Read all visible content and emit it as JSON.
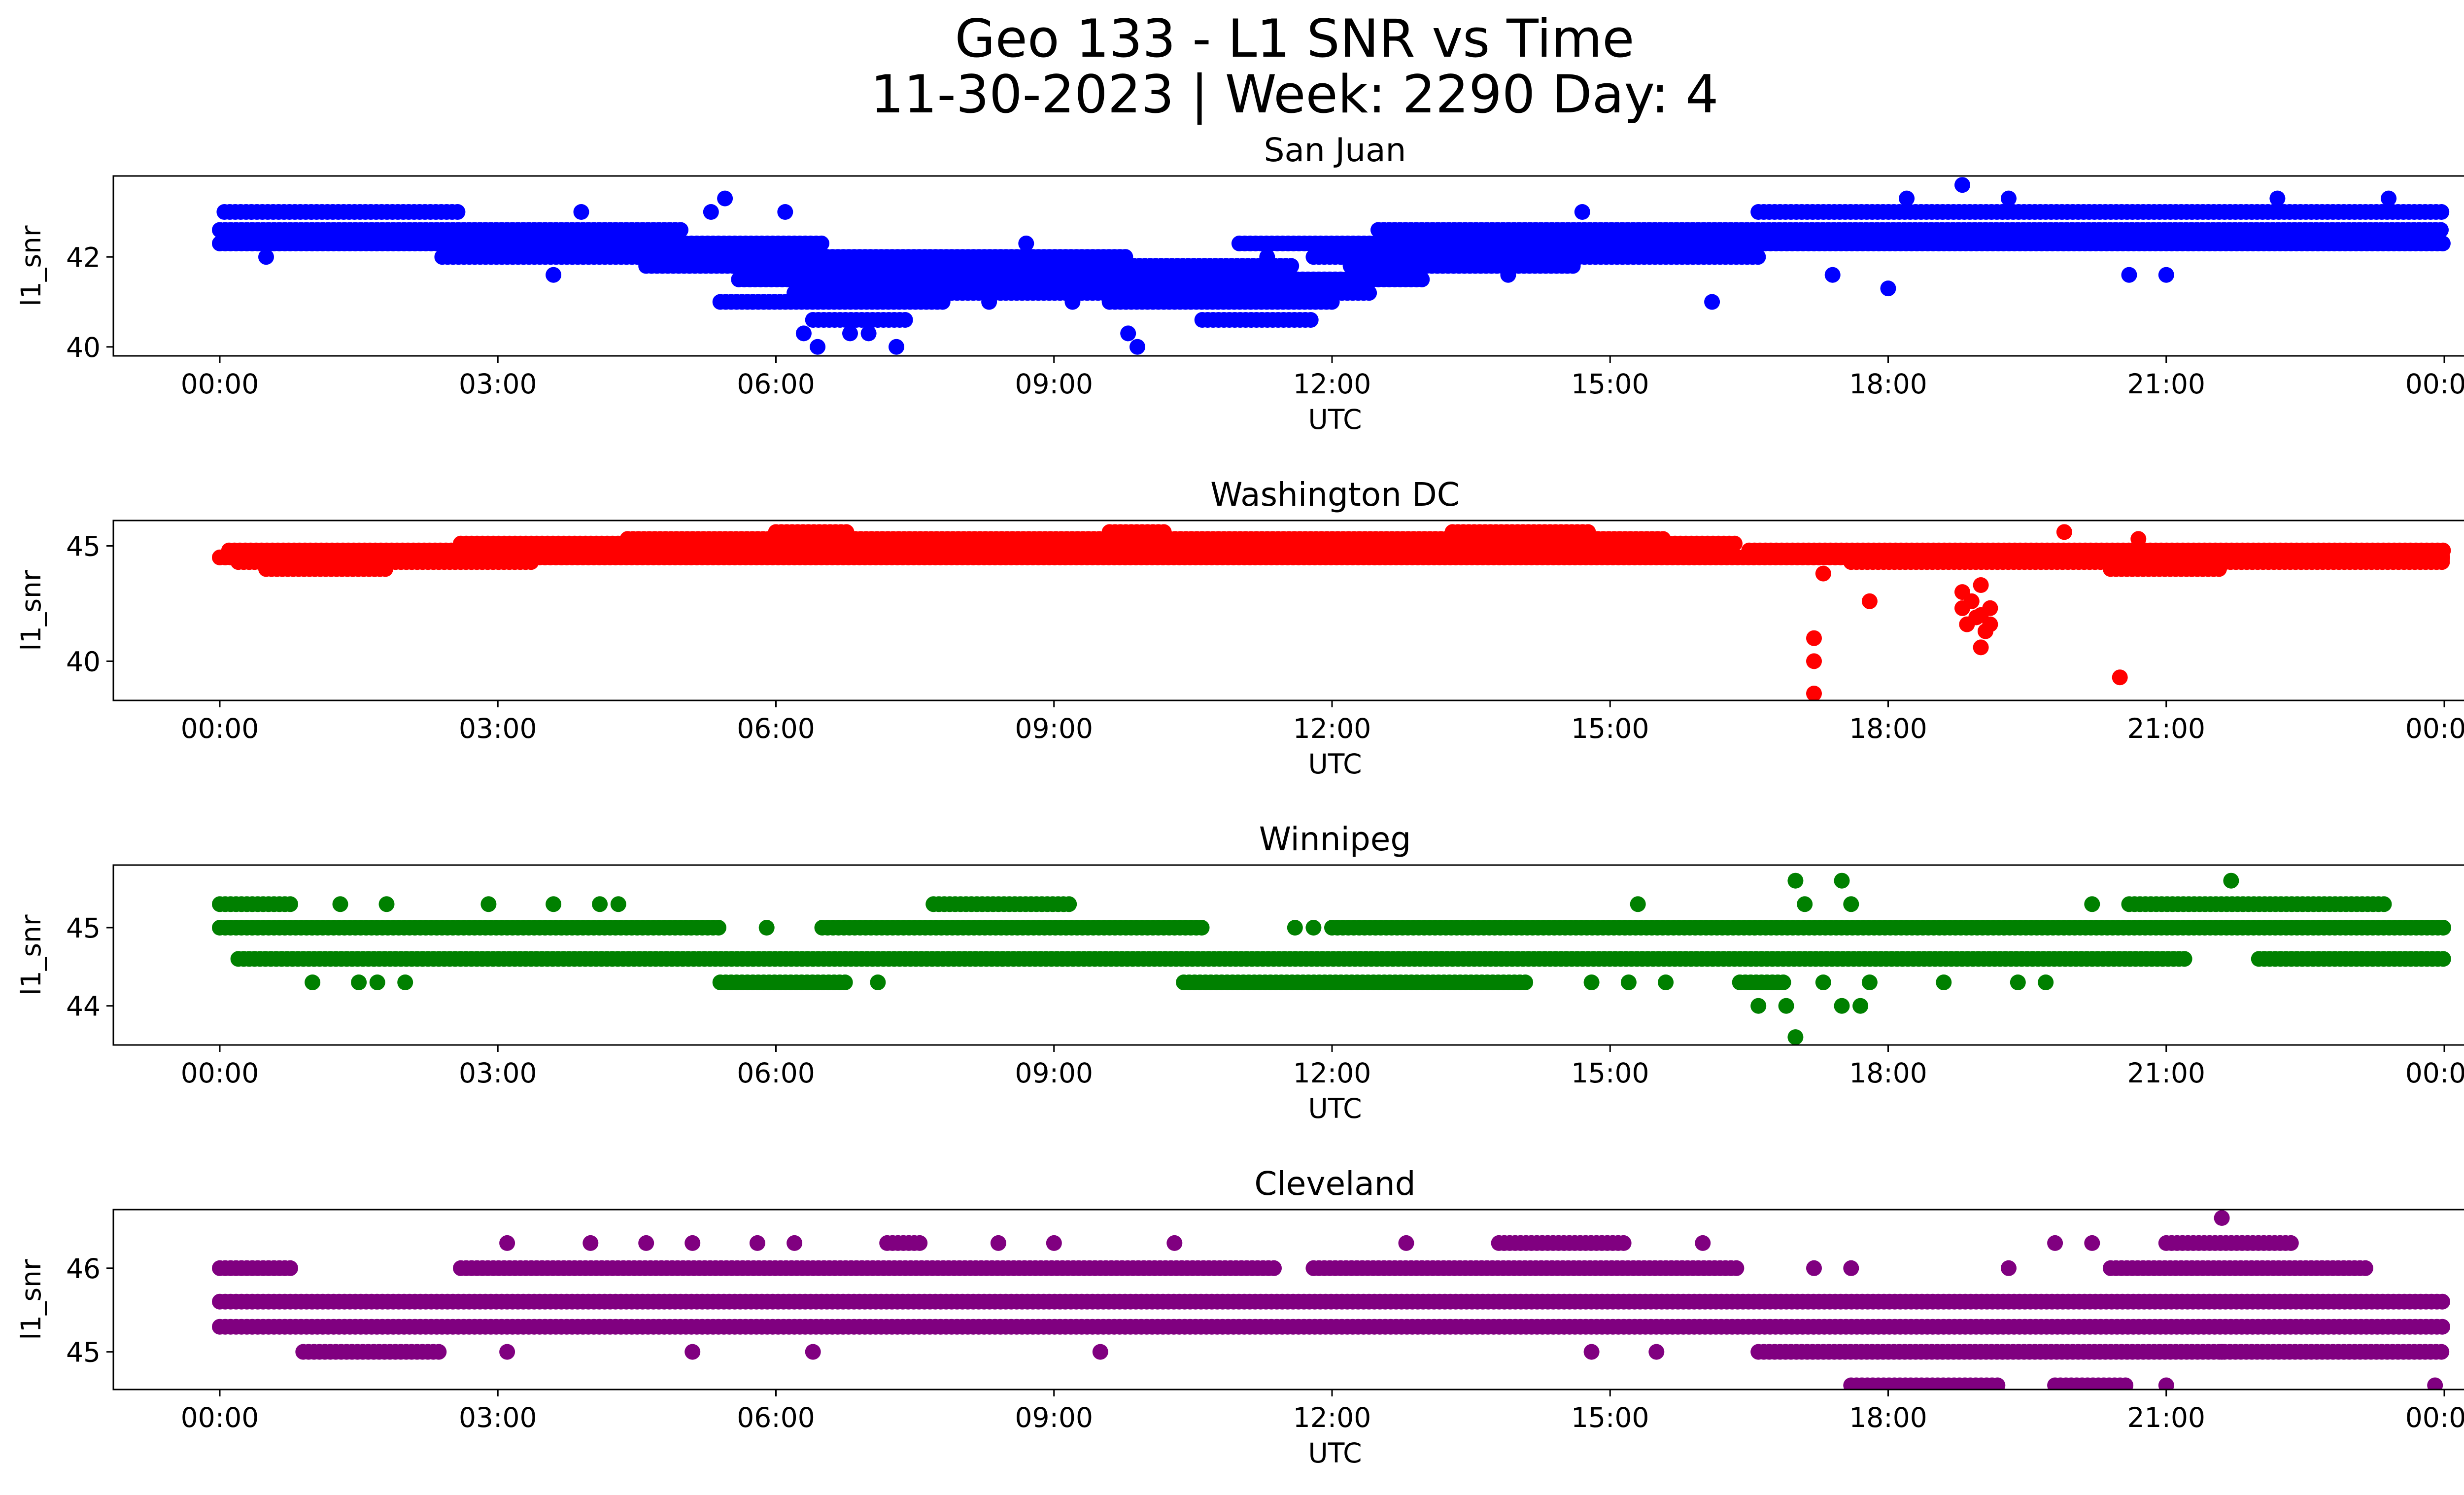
{
  "title_line1": "Geo 133 - L1 SNR vs Time",
  "title_line2": "11-30-2023 | Week: 2290 Day: 4",
  "chart_data": [
    {
      "type": "scatter",
      "title": "San Juan",
      "xlabel": "UTC",
      "ylabel": "l1_snr",
      "color": "#0000ff",
      "xlim": [
        "2023-11-30 00:00",
        "2023-12-01 00:00"
      ],
      "ylim": [
        39.8,
        43.8
      ],
      "yticks": [
        40,
        42
      ],
      "xticks": [
        "00:00",
        "03:00",
        "06:00",
        "09:00",
        "12:00",
        "15:00",
        "18:00",
        "21:00",
        "00:00"
      ],
      "bands": [
        {
          "y": 42.6,
          "x": [
            [
              0.0,
              5.0
            ],
            [
              12.5,
              24.0
            ]
          ]
        },
        {
          "y": 42.3,
          "x": [
            [
              0.0,
              6.5
            ],
            [
              11.0,
              24.0
            ]
          ]
        },
        {
          "y": 43.0,
          "x": [
            [
              0.05,
              2.6
            ],
            [
              16.6,
              24.0
            ]
          ]
        },
        {
          "y": 42.0,
          "x": [
            [
              2.4,
              9.8
            ],
            [
              11.8,
              16.6
            ]
          ]
        },
        {
          "y": 41.8,
          "x": [
            [
              4.6,
              11.6
            ],
            [
              12.2,
              14.6
            ]
          ]
        },
        {
          "y": 41.5,
          "x": [
            [
              5.6,
              13.0
            ]
          ]
        },
        {
          "y": 41.2,
          "x": [
            [
              6.2,
              12.4
            ]
          ]
        },
        {
          "y": 41.0,
          "x": [
            [
              5.4,
              7.8
            ],
            [
              9.6,
              12.0
            ]
          ]
        },
        {
          "y": 40.6,
          "x": [
            [
              6.4,
              7.4
            ],
            [
              10.6,
              11.8
            ]
          ]
        }
      ],
      "points": [
        {
          "x": 0.5,
          "y": 42.0
        },
        {
          "x": 3.6,
          "y": 41.6
        },
        {
          "x": 3.9,
          "y": 43.0
        },
        {
          "x": 5.3,
          "y": 43.0
        },
        {
          "x": 5.45,
          "y": 43.3
        },
        {
          "x": 6.1,
          "y": 43.0
        },
        {
          "x": 6.3,
          "y": 40.3
        },
        {
          "x": 6.45,
          "y": 40.0
        },
        {
          "x": 6.8,
          "y": 40.3
        },
        {
          "x": 7.0,
          "y": 40.3
        },
        {
          "x": 7.3,
          "y": 40.0
        },
        {
          "x": 8.3,
          "y": 41.0
        },
        {
          "x": 8.7,
          "y": 42.3
        },
        {
          "x": 9.2,
          "y": 41.0
        },
        {
          "x": 9.8,
          "y": 40.3
        },
        {
          "x": 9.9,
          "y": 40.0
        },
        {
          "x": 11.3,
          "y": 42.0
        },
        {
          "x": 12.1,
          "y": 42.0
        },
        {
          "x": 13.9,
          "y": 41.6
        },
        {
          "x": 14.7,
          "y": 43.0
        },
        {
          "x": 16.1,
          "y": 41.0
        },
        {
          "x": 17.4,
          "y": 41.6
        },
        {
          "x": 18.0,
          "y": 41.3
        },
        {
          "x": 18.2,
          "y": 43.3
        },
        {
          "x": 18.8,
          "y": 43.6
        },
        {
          "x": 19.3,
          "y": 43.3
        },
        {
          "x": 20.6,
          "y": 41.6
        },
        {
          "x": 21.0,
          "y": 41.6
        },
        {
          "x": 22.2,
          "y": 43.3
        },
        {
          "x": 23.4,
          "y": 43.3
        }
      ]
    },
    {
      "type": "scatter",
      "title": "Washington DC",
      "xlabel": "UTC",
      "ylabel": "l1_snr",
      "color": "#ff0000",
      "xlim": [
        "2023-11-30 00:00",
        "2023-12-01 00:00"
      ],
      "ylim": [
        38.3,
        46.1
      ],
      "yticks": [
        40,
        45
      ],
      "xticks": [
        "00:00",
        "03:00",
        "06:00",
        "09:00",
        "12:00",
        "15:00",
        "18:00",
        "21:00",
        "00:00"
      ],
      "bands": [
        {
          "y": 44.5,
          "x": [
            [
              0.0,
              24.0
            ]
          ]
        },
        {
          "y": 44.3,
          "x": [
            [
              0.2,
              3.4
            ],
            [
              17.6,
              24.0
            ]
          ]
        },
        {
          "y": 44.8,
          "x": [
            [
              0.1,
              5.2
            ],
            [
              16.5,
              24.0
            ]
          ]
        },
        {
          "y": 45.1,
          "x": [
            [
              2.6,
              16.4
            ]
          ]
        },
        {
          "y": 45.3,
          "x": [
            [
              4.4,
              15.6
            ]
          ]
        },
        {
          "y": 44.0,
          "x": [
            [
              0.5,
              1.8
            ],
            [
              20.4,
              21.6
            ]
          ]
        },
        {
          "y": 45.6,
          "x": [
            [
              6.0,
              6.8
            ],
            [
              9.6,
              10.2
            ],
            [
              13.3,
              14.8
            ]
          ]
        }
      ],
      "points": [
        {
          "x": 17.2,
          "y": 41.0
        },
        {
          "x": 17.2,
          "y": 40.0
        },
        {
          "x": 17.2,
          "y": 38.6
        },
        {
          "x": 17.3,
          "y": 43.8
        },
        {
          "x": 17.8,
          "y": 42.6
        },
        {
          "x": 18.8,
          "y": 43.0
        },
        {
          "x": 18.8,
          "y": 42.3
        },
        {
          "x": 18.85,
          "y": 41.6
        },
        {
          "x": 18.9,
          "y": 42.6
        },
        {
          "x": 18.95,
          "y": 41.9
        },
        {
          "x": 19.0,
          "y": 43.3
        },
        {
          "x": 19.0,
          "y": 42.0
        },
        {
          "x": 19.05,
          "y": 41.3
        },
        {
          "x": 19.0,
          "y": 40.6
        },
        {
          "x": 19.1,
          "y": 42.3
        },
        {
          "x": 19.1,
          "y": 41.6
        },
        {
          "x": 20.5,
          "y": 39.3
        },
        {
          "x": 19.9,
          "y": 45.6
        },
        {
          "x": 20.7,
          "y": 45.3
        }
      ]
    },
    {
      "type": "scatter",
      "title": "Winnipeg",
      "xlabel": "UTC",
      "ylabel": "l1_snr",
      "color": "#008000",
      "xlim": [
        "2023-11-30 00:00",
        "2023-12-01 00:00"
      ],
      "ylim": [
        43.5,
        45.8
      ],
      "yticks": [
        44,
        45
      ],
      "xticks": [
        "00:00",
        "03:00",
        "06:00",
        "09:00",
        "12:00",
        "15:00",
        "18:00",
        "21:00",
        "00:00"
      ],
      "bands": [
        {
          "y": 45.0,
          "x": [
            [
              0.0,
              5.4
            ],
            [
              6.5,
              10.6
            ],
            [
              12.0,
              24.0
            ]
          ]
        },
        {
          "y": 44.6,
          "x": [
            [
              0.2,
              21.2
            ],
            [
              22.0,
              24.0
            ]
          ]
        },
        {
          "y": 45.3,
          "x": [
            [
              0.0,
              0.8
            ],
            [
              7.7,
              9.2
            ],
            [
              20.6,
              23.4
            ]
          ]
        },
        {
          "y": 44.3,
          "x": [
            [
              5.4,
              6.8
            ],
            [
              10.4,
              14.1
            ],
            [
              16.4,
              16.9
            ]
          ]
        }
      ],
      "points": [
        {
          "x": 1.0,
          "y": 44.3
        },
        {
          "x": 1.5,
          "y": 44.3
        },
        {
          "x": 1.7,
          "y": 44.3
        },
        {
          "x": 2.0,
          "y": 44.3
        },
        {
          "x": 1.3,
          "y": 45.3
        },
        {
          "x": 1.8,
          "y": 45.3
        },
        {
          "x": 2.9,
          "y": 45.3
        },
        {
          "x": 3.6,
          "y": 45.3
        },
        {
          "x": 4.1,
          "y": 45.3
        },
        {
          "x": 4.3,
          "y": 45.3
        },
        {
          "x": 5.9,
          "y": 45.0
        },
        {
          "x": 7.1,
          "y": 44.3
        },
        {
          "x": 11.6,
          "y": 45.0
        },
        {
          "x": 11.8,
          "y": 45.0
        },
        {
          "x": 15.3,
          "y": 45.3
        },
        {
          "x": 14.8,
          "y": 44.3
        },
        {
          "x": 15.2,
          "y": 44.3
        },
        {
          "x": 15.6,
          "y": 44.3
        },
        {
          "x": 16.6,
          "y": 44.0
        },
        {
          "x": 16.9,
          "y": 44.0
        },
        {
          "x": 17.0,
          "y": 43.6
        },
        {
          "x": 17.0,
          "y": 45.6
        },
        {
          "x": 17.1,
          "y": 45.3
        },
        {
          "x": 17.3,
          "y": 44.3
        },
        {
          "x": 17.5,
          "y": 45.6
        },
        {
          "x": 17.6,
          "y": 45.3
        },
        {
          "x": 17.5,
          "y": 44.0
        },
        {
          "x": 17.7,
          "y": 44.0
        },
        {
          "x": 17.8,
          "y": 44.3
        },
        {
          "x": 18.6,
          "y": 44.3
        },
        {
          "x": 19.4,
          "y": 44.3
        },
        {
          "x": 19.7,
          "y": 44.3
        },
        {
          "x": 20.2,
          "y": 45.3
        },
        {
          "x": 21.7,
          "y": 45.6
        }
      ]
    },
    {
      "type": "scatter",
      "title": "Cleveland",
      "xlabel": "UTC",
      "ylabel": "l1_snr",
      "color": "#800080",
      "xlim": [
        "2023-11-30 00:00",
        "2023-12-01 00:00"
      ],
      "ylim": [
        44.55,
        46.7
      ],
      "yticks": [
        45,
        46
      ],
      "xticks": [
        "00:00",
        "03:00",
        "06:00",
        "09:00",
        "12:00",
        "15:00",
        "18:00",
        "21:00",
        "00:00"
      ],
      "ytick_labels": [
        "45",
        "46"
      ],
      "bands": [
        {
          "y": 45.6,
          "x": [
            [
              0.0,
              24.0
            ]
          ]
        },
        {
          "y": 45.3,
          "x": [
            [
              0.0,
              24.0
            ]
          ]
        },
        {
          "y": 46.0,
          "x": [
            [
              0.0,
              0.8
            ],
            [
              2.6,
              11.4
            ],
            [
              11.8,
              16.4
            ],
            [
              20.4,
              23.2
            ]
          ]
        },
        {
          "y": 45.0,
          "x": [
            [
              0.9,
              2.4
            ],
            [
              16.6,
              24.0
            ]
          ]
        },
        {
          "y": 44.6,
          "x": [
            [
              17.6,
              19.2
            ],
            [
              19.8,
              20.6
            ]
          ]
        },
        {
          "y": 46.3,
          "x": [
            [
              7.2,
              7.6
            ],
            [
              13.8,
              15.2
            ],
            [
              21.0,
              22.4
            ]
          ]
        }
      ],
      "points": [
        {
          "x": 3.1,
          "y": 46.3
        },
        {
          "x": 4.0,
          "y": 46.3
        },
        {
          "x": 4.6,
          "y": 46.3
        },
        {
          "x": 5.1,
          "y": 46.3
        },
        {
          "x": 5.8,
          "y": 46.3
        },
        {
          "x": 6.2,
          "y": 46.3
        },
        {
          "x": 8.4,
          "y": 46.3
        },
        {
          "x": 9.0,
          "y": 46.3
        },
        {
          "x": 10.3,
          "y": 46.3
        },
        {
          "x": 12.8,
          "y": 46.3
        },
        {
          "x": 16.0,
          "y": 46.3
        },
        {
          "x": 19.8,
          "y": 46.3
        },
        {
          "x": 20.2,
          "y": 46.3
        },
        {
          "x": 3.1,
          "y": 45.0
        },
        {
          "x": 5.1,
          "y": 45.0
        },
        {
          "x": 6.4,
          "y": 45.0
        },
        {
          "x": 9.5,
          "y": 45.0
        },
        {
          "x": 14.8,
          "y": 45.0
        },
        {
          "x": 15.5,
          "y": 45.0
        },
        {
          "x": 21.6,
          "y": 46.6
        },
        {
          "x": 21.6,
          "y": 45.0
        },
        {
          "x": 21.0,
          "y": 44.6
        },
        {
          "x": 23.9,
          "y": 44.6
        },
        {
          "x": 17.2,
          "y": 46.0
        },
        {
          "x": 17.6,
          "y": 46.0
        },
        {
          "x": 19.3,
          "y": 46.0
        }
      ]
    }
  ]
}
